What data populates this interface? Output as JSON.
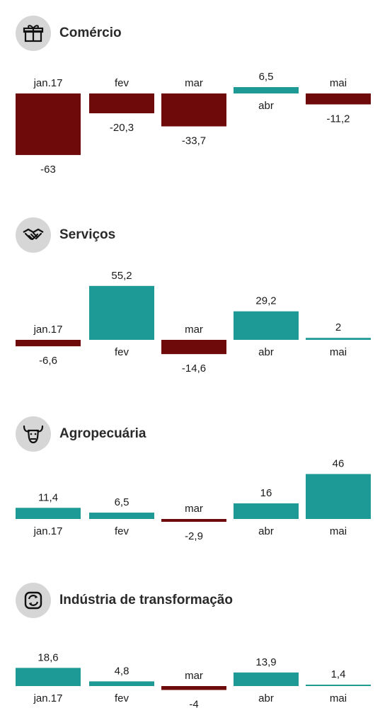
{
  "colors": {
    "positive": "#1d9a96",
    "negative": "#6e0a0a"
  },
  "chart_data": [
    {
      "type": "bar",
      "title": "Comércio",
      "icon": "gift-icon",
      "categories": [
        "jan.17",
        "fev",
        "mar",
        "abr",
        "mai"
      ],
      "values": [
        -63,
        -20.3,
        -33.7,
        6.5,
        -11.2
      ],
      "value_labels": [
        "-63",
        "-20,3",
        "-33,7",
        "6,5",
        "-11,2"
      ]
    },
    {
      "type": "bar",
      "title": "Serviços",
      "icon": "handshake-icon",
      "categories": [
        "jan.17",
        "fev",
        "mar",
        "abr",
        "mai"
      ],
      "values": [
        -6.6,
        55.2,
        -14.6,
        29.2,
        2
      ],
      "value_labels": [
        "-6,6",
        "55,2",
        "-14,6",
        "29,2",
        "2"
      ]
    },
    {
      "type": "bar",
      "title": "Agropecuária",
      "icon": "bull-icon",
      "categories": [
        "jan.17",
        "fev",
        "mar",
        "abr",
        "mai"
      ],
      "values": [
        11.4,
        6.5,
        -2.9,
        16,
        46
      ],
      "value_labels": [
        "11,4",
        "6,5",
        "-2,9",
        "16",
        "46"
      ]
    },
    {
      "type": "bar",
      "title": "Indústria de transformação",
      "icon": "refresh-icon",
      "categories": [
        "jan.17",
        "fev",
        "mar",
        "abr",
        "mai"
      ],
      "values": [
        18.6,
        4.8,
        -4,
        13.9,
        1.4
      ],
      "value_labels": [
        "18,6",
        "4,8",
        "-4",
        "13,9",
        "1,4"
      ]
    }
  ]
}
